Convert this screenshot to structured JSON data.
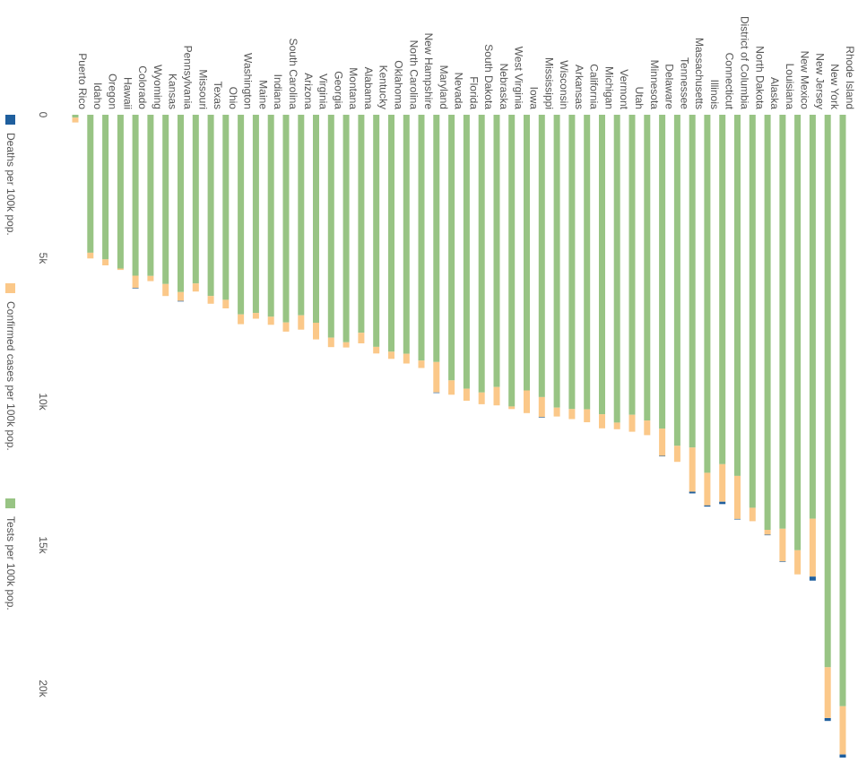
{
  "chart_data": {
    "type": "bar",
    "stacked": true,
    "orientation": "rotated-90-clockwise",
    "categories": [
      "Puerto Rico",
      "Idaho",
      "Oregon",
      "Hawaii",
      "Colorado",
      "Wyoming",
      "Kansas",
      "Pennsylvania",
      "Missouri",
      "Texas",
      "Ohio",
      "Washington",
      "Maine",
      "Indiana",
      "South Carolina",
      "Arizona",
      "Virginia",
      "Georgia",
      "Montana",
      "Alabama",
      "Kentucky",
      "Oklahoma",
      "North Carolina",
      "New Hampshire",
      "Maryland",
      "Nevada",
      "Florida",
      "South Dakota",
      "Nebraska",
      "West Virginia",
      "Iowa",
      "Mississippi",
      "Wisconsin",
      "Arkansas",
      "California",
      "Michigan",
      "Vermont",
      "Utah",
      "Minnesota",
      "Delaware",
      "Tennessee",
      "Massachusetts",
      "Illinois",
      "Connecticut",
      "District of Columbia",
      "North Dakota",
      "Alaska",
      "Louisiana",
      "New Mexico",
      "New Jersey",
      "New York",
      "Rhode Island"
    ],
    "series": [
      {
        "name": "Deaths per 100k pop.",
        "color": "#1f5f9e",
        "values": [
          0,
          0,
          0,
          0,
          5,
          0,
          0,
          5,
          0,
          0,
          0,
          0,
          0,
          0,
          0,
          0,
          0,
          0,
          0,
          0,
          0,
          0,
          0,
          0,
          20,
          0,
          0,
          0,
          0,
          0,
          0,
          5,
          0,
          0,
          0,
          0,
          0,
          0,
          0,
          5,
          0,
          60,
          40,
          80,
          10,
          0,
          5,
          15,
          0,
          140,
          100,
          110
        ]
      },
      {
        "name": "Confirmed cases per 100k pop.",
        "color": "#fbc889",
        "values": [
          170,
          200,
          210,
          50,
          430,
          180,
          420,
          310,
          280,
          270,
          300,
          340,
          200,
          280,
          320,
          500,
          580,
          330,
          180,
          370,
          230,
          250,
          340,
          260,
          1060,
          500,
          420,
          410,
          640,
          90,
          790,
          700,
          310,
          350,
          450,
          490,
          230,
          590,
          510,
          950,
          560,
          1540,
          1140,
          1310,
          1500,
          470,
          170,
          1140,
          840,
          2020,
          1770,
          1680
        ]
      },
      {
        "name": "Tests per 100k pop.",
        "color": "#98c484",
        "values": [
          100,
          4810,
          5040,
          5360,
          5610,
          5620,
          5900,
          6180,
          5880,
          6320,
          6450,
          6960,
          6910,
          7040,
          7240,
          6990,
          7250,
          7770,
          7930,
          7600,
          8090,
          8260,
          8330,
          8570,
          8620,
          9260,
          9550,
          9680,
          9490,
          10170,
          9610,
          9840,
          10210,
          10260,
          10270,
          10440,
          10730,
          10460,
          10660,
          10940,
          11540,
          11600,
          12480,
          12180,
          12590,
          13700,
          14470,
          14430,
          15180,
          14080,
          19260,
          20620
        ]
      }
    ],
    "xlim": [
      0,
      22500
    ],
    "ticks": [
      "0",
      "5k",
      "10k",
      "15k",
      "20k"
    ],
    "tick_values": [
      0,
      5000,
      10000,
      15000,
      20000
    ],
    "legend_position": "bottom",
    "grid": false
  }
}
